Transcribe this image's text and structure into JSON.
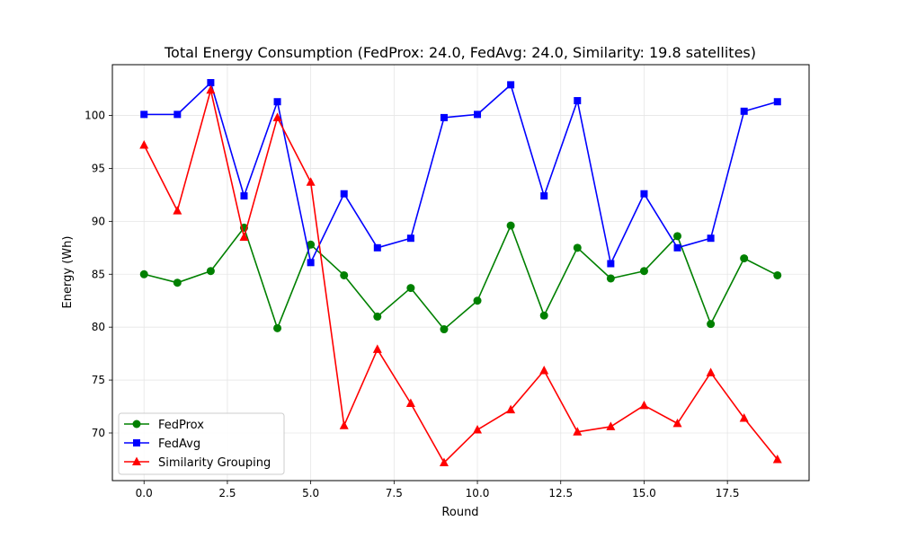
{
  "chart_data": {
    "type": "line",
    "title": "Total Energy Consumption (FedProx: 24.0, FedAvg: 24.0, Similarity: 19.8 satellites)",
    "xlabel": "Round",
    "ylabel": "Energy (Wh)",
    "xlim": [
      -0.95,
      19.95
    ],
    "ylim": [
      65.5,
      104.8
    ],
    "xticks": [
      0.0,
      2.5,
      5.0,
      7.5,
      10.0,
      12.5,
      15.0,
      17.5
    ],
    "xtick_labels": [
      "0.0",
      "2.5",
      "5.0",
      "7.5",
      "10.0",
      "12.5",
      "15.0",
      "17.5"
    ],
    "yticks": [
      70,
      75,
      80,
      85,
      90,
      95,
      100
    ],
    "ytick_labels": [
      "70",
      "75",
      "80",
      "85",
      "90",
      "95",
      "100"
    ],
    "grid": true,
    "legend_position": "lower-left",
    "x": [
      0,
      1,
      2,
      3,
      4,
      5,
      6,
      7,
      8,
      9,
      10,
      11,
      12,
      13,
      14,
      15,
      16,
      17,
      18,
      19
    ],
    "series": [
      {
        "name": "FedProx",
        "color": "#008000",
        "marker": "circle",
        "values": [
          85.0,
          84.2,
          85.3,
          89.4,
          79.9,
          87.8,
          84.9,
          81.0,
          83.7,
          79.8,
          82.5,
          89.6,
          81.1,
          87.5,
          84.6,
          85.3,
          88.6,
          80.3,
          86.5,
          84.9
        ]
      },
      {
        "name": "FedAvg",
        "color": "#0000ff",
        "marker": "square",
        "values": [
          100.1,
          100.1,
          103.1,
          92.4,
          101.3,
          86.1,
          92.6,
          87.5,
          88.4,
          99.8,
          100.1,
          102.9,
          92.4,
          101.4,
          86.0,
          92.6,
          87.5,
          88.4,
          100.4,
          101.3
        ]
      },
      {
        "name": "Similarity Grouping",
        "color": "#ff0000",
        "marker": "triangle",
        "values": [
          97.2,
          91.0,
          102.4,
          88.5,
          99.8,
          93.7,
          70.7,
          77.9,
          72.8,
          67.2,
          70.3,
          72.2,
          75.9,
          70.1,
          70.6,
          72.6,
          70.9,
          75.7,
          71.4,
          67.5
        ]
      }
    ]
  }
}
